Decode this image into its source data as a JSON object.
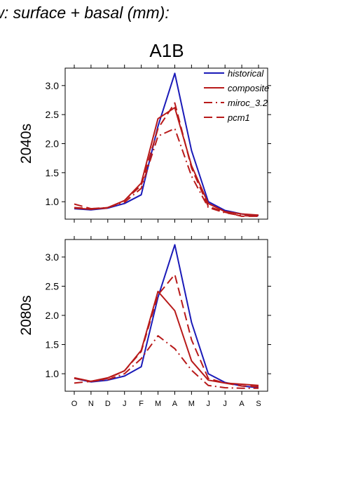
{
  "figure": {
    "title": "Total runoff / routed flow: surface + basal (mm):",
    "subtitle": "A1B"
  },
  "legend": {
    "placement": "top-right of top panel",
    "entries": [
      {
        "label": "historical",
        "color": "#1a1ab8",
        "style": "solid"
      },
      {
        "label": "composite",
        "color": "#b81a1a",
        "style": "solid"
      },
      {
        "label": "miroc_3.2",
        "color": "#b81a1a",
        "style": "dash-dot"
      },
      {
        "label": "pcm1",
        "color": "#b81a1a",
        "style": "dashed"
      }
    ]
  },
  "chart_data": [
    {
      "type": "line",
      "panel_label": "2040s",
      "categories": [
        "O",
        "N",
        "D",
        "J",
        "F",
        "M",
        "A",
        "M",
        "J",
        "J",
        "A",
        "S"
      ],
      "ylim": [
        0.7,
        3.3
      ],
      "yticks": [
        1.0,
        1.5,
        2.0,
        2.5,
        3.0
      ],
      "ytick_labels": [
        "1.0",
        "1.5",
        "2.0",
        "2.5",
        "3.0"
      ],
      "show_xtick_labels": false,
      "grid": false,
      "series": [
        {
          "name": "historical",
          "color": "#1a1ab8",
          "style": "solid",
          "values": [
            0.88,
            0.86,
            0.89,
            0.97,
            1.12,
            2.3,
            3.21,
            1.88,
            1.0,
            0.85,
            0.79,
            0.76
          ]
        },
        {
          "name": "composite",
          "color": "#b81a1a",
          "style": "solid",
          "values": [
            0.89,
            0.87,
            0.9,
            1.02,
            1.32,
            2.43,
            2.62,
            1.62,
            0.97,
            0.83,
            0.79,
            0.77
          ]
        },
        {
          "name": "miroc_3.2",
          "color": "#b81a1a",
          "style": "dash-dot",
          "values": [
            0.9,
            0.88,
            0.9,
            0.99,
            1.23,
            2.13,
            2.26,
            1.44,
            0.9,
            0.81,
            0.76,
            0.75
          ]
        },
        {
          "name": "pcm1",
          "color": "#b81a1a",
          "style": "dashed",
          "values": [
            0.96,
            0.88,
            0.89,
            1.02,
            1.28,
            2.26,
            2.7,
            1.58,
            0.92,
            0.82,
            0.75,
            0.75
          ]
        }
      ]
    },
    {
      "type": "line",
      "panel_label": "2080s",
      "categories": [
        "O",
        "N",
        "D",
        "J",
        "F",
        "M",
        "A",
        "M",
        "J",
        "J",
        "A",
        "S"
      ],
      "ylim": [
        0.7,
        3.3
      ],
      "yticks": [
        1.0,
        1.5,
        2.0,
        2.5,
        3.0
      ],
      "ytick_labels": [
        "1.0",
        "1.5",
        "2.0",
        "2.5",
        "3.0"
      ],
      "show_xtick_labels": true,
      "grid": false,
      "series": [
        {
          "name": "historical",
          "color": "#1a1ab8",
          "style": "solid",
          "values": [
            0.92,
            0.86,
            0.89,
            0.96,
            1.12,
            2.31,
            3.21,
            1.88,
            1.0,
            0.85,
            0.79,
            0.76
          ]
        },
        {
          "name": "composite",
          "color": "#b81a1a",
          "style": "solid",
          "values": [
            0.93,
            0.87,
            0.93,
            1.05,
            1.4,
            2.41,
            2.08,
            1.22,
            0.89,
            0.84,
            0.82,
            0.8
          ]
        },
        {
          "name": "miroc_3.2",
          "color": "#b81a1a",
          "style": "dash-dot",
          "values": [
            0.92,
            0.87,
            0.9,
            1.0,
            1.26,
            1.65,
            1.43,
            1.06,
            0.8,
            0.76,
            0.75,
            0.75
          ]
        },
        {
          "name": "pcm1",
          "color": "#b81a1a",
          "style": "dashed",
          "values": [
            0.84,
            0.87,
            0.92,
            1.05,
            1.38,
            2.35,
            2.7,
            1.58,
            0.92,
            0.84,
            0.79,
            0.78
          ]
        }
      ]
    }
  ]
}
